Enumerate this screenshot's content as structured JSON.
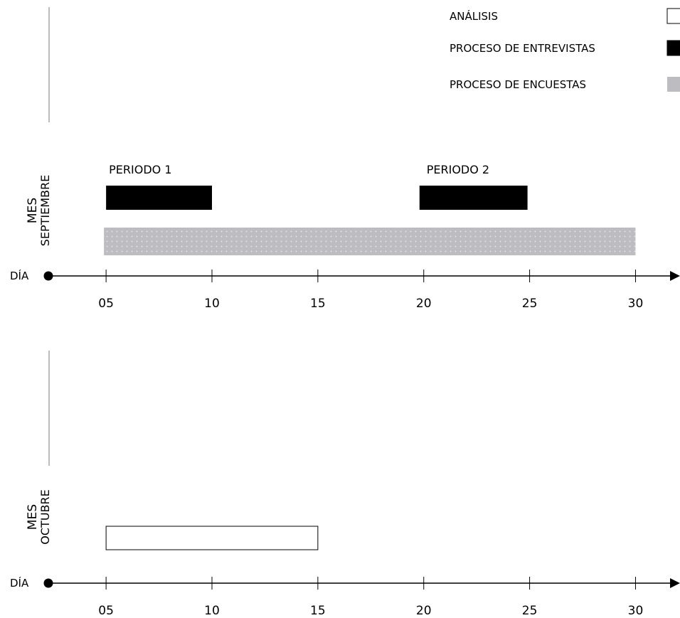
{
  "legend": [
    {
      "key": "analysis",
      "label": "ANÁLISIS",
      "fill": "#ffffff",
      "stroke": "#000000"
    },
    {
      "key": "interviews",
      "label": "PROCESO DE ENTREVISTAS",
      "fill": "#000000",
      "stroke": "#000000"
    },
    {
      "key": "surveys",
      "label": "PROCESO DE ENCUESTAS",
      "fill": "#bdbdc1",
      "stroke": "none"
    }
  ],
  "chart_data": [
    {
      "type": "bar",
      "month_label": "MES",
      "month": "SEPTIEMBRE",
      "axis_label": "DÍA",
      "xlim": [
        2.5,
        32
      ],
      "ticks": [
        5,
        10,
        15,
        20,
        25,
        30
      ],
      "tick_labels": [
        "05",
        "10",
        "15",
        "20",
        "25",
        "30"
      ],
      "period_labels": [
        {
          "text": "PERIODO 1",
          "x": 5
        },
        {
          "text": "PERIODO 2",
          "x": 20
        }
      ],
      "series": [
        {
          "key": "interviews",
          "row": "top",
          "bars": [
            [
              5,
              10
            ],
            [
              19.8,
              24.9
            ]
          ]
        },
        {
          "key": "surveys",
          "row": "bottom",
          "bars": [
            [
              4.9,
              30
            ]
          ]
        }
      ]
    },
    {
      "type": "bar",
      "month_label": "MES",
      "month": "OCTUBRE",
      "axis_label": "DÍA",
      "xlim": [
        2.5,
        32
      ],
      "ticks": [
        5,
        10,
        15,
        20,
        25,
        30
      ],
      "tick_labels": [
        "05",
        "10",
        "15",
        "20",
        "25",
        "30"
      ],
      "period_labels": [],
      "series": [
        {
          "key": "analysis",
          "row": "bottom",
          "bars": [
            [
              5,
              15
            ]
          ]
        }
      ]
    }
  ]
}
